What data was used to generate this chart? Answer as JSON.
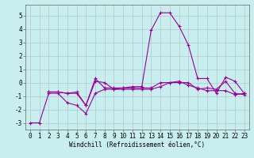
{
  "xlabel": "Windchill (Refroidissement éolien,°C)",
  "background_color": "#c8eef0",
  "grid_color": "#b0c8c8",
  "line_color": "#990099",
  "xlim": [
    -0.5,
    23.5
  ],
  "ylim": [
    -3.5,
    5.8
  ],
  "yticks": [
    -3,
    -2,
    -1,
    0,
    1,
    2,
    3,
    4,
    5
  ],
  "xticks": [
    0,
    1,
    2,
    3,
    4,
    5,
    6,
    7,
    8,
    9,
    10,
    11,
    12,
    13,
    14,
    15,
    16,
    17,
    18,
    19,
    20,
    21,
    22,
    23
  ],
  "line1_x": [
    0,
    1,
    2,
    3,
    4,
    5,
    6,
    7,
    8,
    9,
    10,
    11,
    12,
    13,
    14,
    15,
    16,
    17,
    18,
    19,
    20,
    21,
    22,
    23
  ],
  "line1_y": [
    -3.0,
    -3.0,
    -0.8,
    -0.8,
    -1.5,
    -1.7,
    -2.3,
    -0.8,
    -0.5,
    -0.5,
    -0.4,
    -0.3,
    -0.3,
    3.9,
    5.2,
    5.2,
    4.2,
    2.8,
    0.3,
    0.3,
    -0.8,
    0.4,
    0.1,
    -0.8
  ],
  "line2_x": [
    2,
    3,
    4,
    5,
    6,
    7,
    8,
    9,
    10,
    11,
    12,
    13,
    14,
    15,
    16,
    17,
    18,
    19,
    20,
    21,
    22,
    23
  ],
  "line2_y": [
    -0.7,
    -0.7,
    -0.8,
    -0.8,
    -1.7,
    0.3,
    -0.4,
    -0.4,
    -0.4,
    -0.4,
    -0.4,
    -0.4,
    0.0,
    0.0,
    0.0,
    0.0,
    -0.5,
    -0.4,
    -0.5,
    0.1,
    -0.8,
    -0.9
  ],
  "line3_x": [
    2,
    3,
    4,
    5,
    6,
    7,
    8,
    9,
    10,
    11,
    12,
    13,
    14,
    15,
    16,
    17,
    18,
    19,
    20,
    21,
    22,
    23
  ],
  "line3_y": [
    -0.7,
    -0.7,
    -0.8,
    -0.7,
    -1.7,
    0.1,
    0.0,
    -0.5,
    -0.5,
    -0.5,
    -0.5,
    -0.5,
    -0.3,
    0.0,
    0.1,
    -0.2,
    -0.4,
    -0.6,
    -0.6,
    -0.6,
    -0.9,
    -0.8
  ],
  "tick_fontsize": 5.5,
  "xlabel_fontsize": 5.5
}
